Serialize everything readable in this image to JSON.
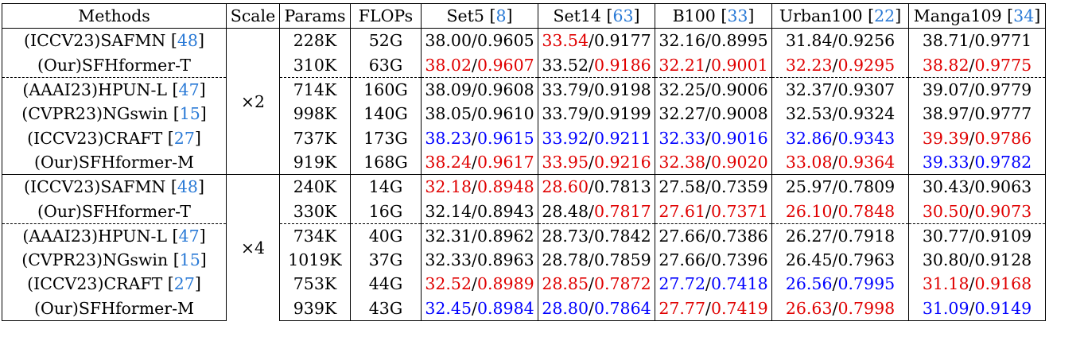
{
  "header": {
    "methods": "Methods",
    "scale": "Scale",
    "params": "Params",
    "flops": "FLOPs",
    "datasets": [
      {
        "name": "Set5",
        "cite": "8"
      },
      {
        "name": "Set14",
        "cite": "63"
      },
      {
        "name": "B100",
        "cite": "33"
      },
      {
        "name": "Urban100",
        "cite": "22"
      },
      {
        "name": "Manga109",
        "cite": "34"
      }
    ]
  },
  "colors": {
    "best": "#e00000",
    "second": "#0000ff",
    "citation": "#2a7ad6"
  },
  "groups": [
    {
      "scale": "×2",
      "rows": [
        {
          "method": "(ICCV23)SAFMN",
          "cite": "48",
          "params": "228K",
          "flops": "52G",
          "cells": [
            [
              "38.00",
              "n",
              "0.9605",
              "n"
            ],
            [
              "33.54",
              "r",
              "0.9177",
              "n"
            ],
            [
              "32.16",
              "n",
              "0.8995",
              "n"
            ],
            [
              "31.84",
              "n",
              "0.9256",
              "n"
            ],
            [
              "38.71",
              "n",
              "0.9771",
              "n"
            ]
          ]
        },
        {
          "method": "(Our)SFHformer-T",
          "cite": "",
          "params": "310K",
          "flops": "63G",
          "cells": [
            [
              "38.02",
              "r",
              "0.9607",
              "r"
            ],
            [
              "33.52",
              "n",
              "0.9186",
              "r"
            ],
            [
              "32.21",
              "r",
              "0.9001",
              "r"
            ],
            [
              "32.23",
              "r",
              "0.9295",
              "r"
            ],
            [
              "38.82",
              "r",
              "0.9775",
              "r"
            ]
          ]
        },
        {
          "method": "(AAAI23)HPUN-L",
          "cite": "47",
          "params": "714K",
          "flops": "160G",
          "dash": true,
          "cells": [
            [
              "38.09",
              "n",
              "0.9608",
              "n"
            ],
            [
              "33.79",
              "n",
              "0.9198",
              "n"
            ],
            [
              "32.25",
              "n",
              "0.9006",
              "n"
            ],
            [
              "32.37",
              "n",
              "0.9307",
              "n"
            ],
            [
              "39.07",
              "n",
              "0.9779",
              "n"
            ]
          ]
        },
        {
          "method": "(CVPR23)NGswin",
          "cite": "15",
          "params": "998K",
          "flops": "140G",
          "cells": [
            [
              "38.05",
              "n",
              "0.9610",
              "n"
            ],
            [
              "33.79",
              "n",
              "0.9199",
              "n"
            ],
            [
              "32.27",
              "n",
              "0.9008",
              "n"
            ],
            [
              "32.53",
              "n",
              "0.9324",
              "n"
            ],
            [
              "38.97",
              "n",
              "0.9777",
              "n"
            ]
          ]
        },
        {
          "method": "(ICCV23)CRAFT",
          "cite": "27",
          "params": "737K",
          "flops": "173G",
          "cells": [
            [
              "38.23",
              "b",
              "0.9615",
              "b"
            ],
            [
              "33.92",
              "b",
              "0.9211",
              "b"
            ],
            [
              "32.33",
              "b",
              "0.9016",
              "b"
            ],
            [
              "32.86",
              "b",
              "0.9343",
              "b"
            ],
            [
              "39.39",
              "r",
              "0.9786",
              "r"
            ]
          ]
        },
        {
          "method": "(Our)SFHformer-M",
          "cite": "",
          "params": "919K",
          "flops": "168G",
          "cells": [
            [
              "38.24",
              "r",
              "0.9617",
              "r"
            ],
            [
              "33.95",
              "r",
              "0.9216",
              "r"
            ],
            [
              "32.38",
              "r",
              "0.9020",
              "r"
            ],
            [
              "33.08",
              "r",
              "0.9364",
              "r"
            ],
            [
              "39.33",
              "b",
              "0.9782",
              "b"
            ]
          ]
        }
      ]
    },
    {
      "scale": "×4",
      "rows": [
        {
          "method": "(ICCV23)SAFMN",
          "cite": "48",
          "params": "240K",
          "flops": "14G",
          "cells": [
            [
              "32.18",
              "r",
              "0.8948",
              "r"
            ],
            [
              "28.60",
              "r",
              "0.7813",
              "n"
            ],
            [
              "27.58",
              "n",
              "0.7359",
              "n"
            ],
            [
              "25.97",
              "n",
              "0.7809",
              "n"
            ],
            [
              "30.43",
              "n",
              "0.9063",
              "n"
            ]
          ]
        },
        {
          "method": "(Our)SFHformer-T",
          "cite": "",
          "params": "330K",
          "flops": "16G",
          "cells": [
            [
              "32.14",
              "n",
              "0.8943",
              "n"
            ],
            [
              "28.48",
              "n",
              "0.7817",
              "r"
            ],
            [
              "27.61",
              "r",
              "0.7371",
              "r"
            ],
            [
              "26.10",
              "r",
              "0.7848",
              "r"
            ],
            [
              "30.50",
              "r",
              "0.9073",
              "r"
            ]
          ]
        },
        {
          "method": "(AAAI23)HPUN-L",
          "cite": "47",
          "params": "734K",
          "flops": "40G",
          "dash": true,
          "cells": [
            [
              "32.31",
              "n",
              "0.8962",
              "n"
            ],
            [
              "28.73",
              "n",
              "0.7842",
              "n"
            ],
            [
              "27.66",
              "n",
              "0.7386",
              "n"
            ],
            [
              "26.27",
              "n",
              "0.7918",
              "n"
            ],
            [
              "30.77",
              "n",
              "0.9109",
              "n"
            ]
          ]
        },
        {
          "method": "(CVPR23)NGswin",
          "cite": "15",
          "params": "1019K",
          "flops": "37G",
          "cells": [
            [
              "32.33",
              "n",
              "0.8963",
              "n"
            ],
            [
              "28.78",
              "n",
              "0.7859",
              "n"
            ],
            [
              "27.66",
              "n",
              "0.7396",
              "n"
            ],
            [
              "26.45",
              "n",
              "0.7963",
              "n"
            ],
            [
              "30.80",
              "n",
              "0.9128",
              "n"
            ]
          ]
        },
        {
          "method": "(ICCV23)CRAFT",
          "cite": "27",
          "params": "753K",
          "flops": "44G",
          "cells": [
            [
              "32.52",
              "r",
              "0.8989",
              "r"
            ],
            [
              "28.85",
              "r",
              "0.7872",
              "r"
            ],
            [
              "27.72",
              "b",
              "0.7418",
              "b"
            ],
            [
              "26.56",
              "b",
              "0.7995",
              "b"
            ],
            [
              "31.18",
              "r",
              "0.9168",
              "r"
            ]
          ]
        },
        {
          "method": "(Our)SFHformer-M",
          "cite": "",
          "params": "939K",
          "flops": "43G",
          "cells": [
            [
              "32.45",
              "b",
              "0.8984",
              "b"
            ],
            [
              "28.80",
              "b",
              "0.7864",
              "b"
            ],
            [
              "27.77",
              "r",
              "0.7419",
              "r"
            ],
            [
              "26.63",
              "r",
              "0.7998",
              "r"
            ],
            [
              "31.09",
              "b",
              "0.9149",
              "b"
            ]
          ]
        }
      ]
    }
  ]
}
